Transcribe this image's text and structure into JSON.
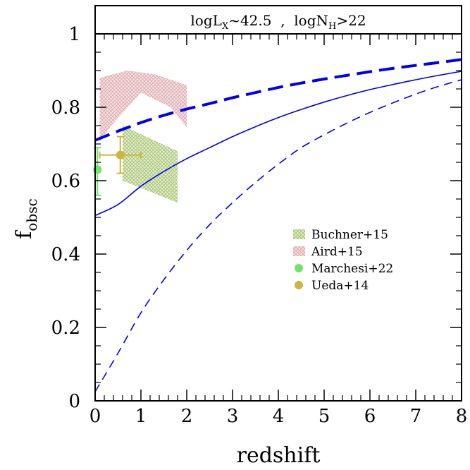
{
  "chart_data": {
    "type": "line",
    "title_parts": {
      "l_main": "logL",
      "l_sub": "X",
      "l_tail": "~42.5  ,  logN",
      "n_sub": "H",
      "n_tail": ">22"
    },
    "xlabel": "redshift",
    "ylabel_main": "f",
    "ylabel_sub": "obsc",
    "xlim": [
      0,
      8
    ],
    "ylim": [
      0,
      1
    ],
    "x_ticks": [
      0,
      1,
      2,
      3,
      4,
      5,
      6,
      7,
      8
    ],
    "x_tick_labels": [
      "0",
      "1",
      "2",
      "3",
      "4",
      "5",
      "6",
      "7",
      "8"
    ],
    "y_ticks": [
      0,
      0.2,
      0.4,
      0.6,
      0.8,
      1
    ],
    "y_tick_labels": [
      "0",
      "0.2",
      "0.4",
      "0.6",
      "0.8",
      "1"
    ],
    "curves": [
      {
        "style": "thick-dashed",
        "color": "#0000ee",
        "x": [
          0,
          0.5,
          1,
          1.5,
          2,
          2.5,
          3,
          3.5,
          4,
          4.5,
          5,
          5.5,
          6,
          6.5,
          7,
          7.5,
          8
        ],
        "y": [
          0.71,
          0.735,
          0.758,
          0.778,
          0.795,
          0.81,
          0.826,
          0.84,
          0.854,
          0.866,
          0.877,
          0.887,
          0.897,
          0.906,
          0.914,
          0.922,
          0.93
        ]
      },
      {
        "style": "thin-solid",
        "color": "#0000ee",
        "x": [
          0,
          0.5,
          1,
          1.5,
          2,
          2.5,
          3,
          3.5,
          4,
          4.5,
          5,
          5.5,
          6,
          6.5,
          7,
          7.5,
          8
        ],
        "y": [
          0.505,
          0.535,
          0.585,
          0.625,
          0.66,
          0.69,
          0.72,
          0.747,
          0.772,
          0.794,
          0.814,
          0.832,
          0.848,
          0.862,
          0.875,
          0.887,
          0.898
        ]
      },
      {
        "style": "thin-dashed",
        "color": "#0000ee",
        "x": [
          0,
          0.5,
          1,
          1.5,
          2,
          2.5,
          3,
          3.5,
          4,
          4.5,
          5,
          5.5,
          6,
          6.5,
          7,
          7.5,
          8
        ],
        "y": [
          0.025,
          0.13,
          0.24,
          0.33,
          0.41,
          0.48,
          0.54,
          0.595,
          0.645,
          0.69,
          0.725,
          0.757,
          0.786,
          0.812,
          0.836,
          0.857,
          0.875
        ]
      }
    ],
    "bands": [
      {
        "legend": "Buchner+15",
        "color": "#9dbb61",
        "polygon": [
          [
            0.6,
            0.75
          ],
          [
            1.8,
            0.68
          ],
          [
            1.8,
            0.54
          ],
          [
            0.6,
            0.6
          ]
        ]
      },
      {
        "legend": "Aird+15",
        "color": "#d99fa6",
        "polygon": [
          [
            0.1,
            0.88
          ],
          [
            0.7,
            0.9
          ],
          [
            1.3,
            0.89
          ],
          [
            2.0,
            0.86
          ],
          [
            2.0,
            0.745
          ],
          [
            1.65,
            0.8
          ],
          [
            1.0,
            0.84
          ],
          [
            0.35,
            0.75
          ],
          [
            0.1,
            0.705
          ]
        ]
      }
    ],
    "points": [
      {
        "legend": "Marchesi+22",
        "color": "#6ee46a",
        "x": 0.05,
        "y": 0.63,
        "xerr": [
          0,
          0
        ],
        "yerr": [
          0.07,
          0.06
        ]
      },
      {
        "legend": "Ueda+14",
        "color": "#ccb540",
        "x": 0.55,
        "y": 0.67,
        "xerr": [
          0.45,
          0.45
        ],
        "yerr": [
          0.05,
          0.05
        ]
      }
    ],
    "legend": [
      {
        "label": "Buchner+15",
        "kind": "band",
        "color": "#9dbb61"
      },
      {
        "label": "Aird+15",
        "kind": "band",
        "color": "#d99fa6"
      },
      {
        "label": "Marchesi+22",
        "kind": "point",
        "color": "#6ee46a"
      },
      {
        "label": "Ueda+14",
        "kind": "point",
        "color": "#ccb540"
      }
    ],
    "legend_position": "lower-right",
    "grid": false
  }
}
